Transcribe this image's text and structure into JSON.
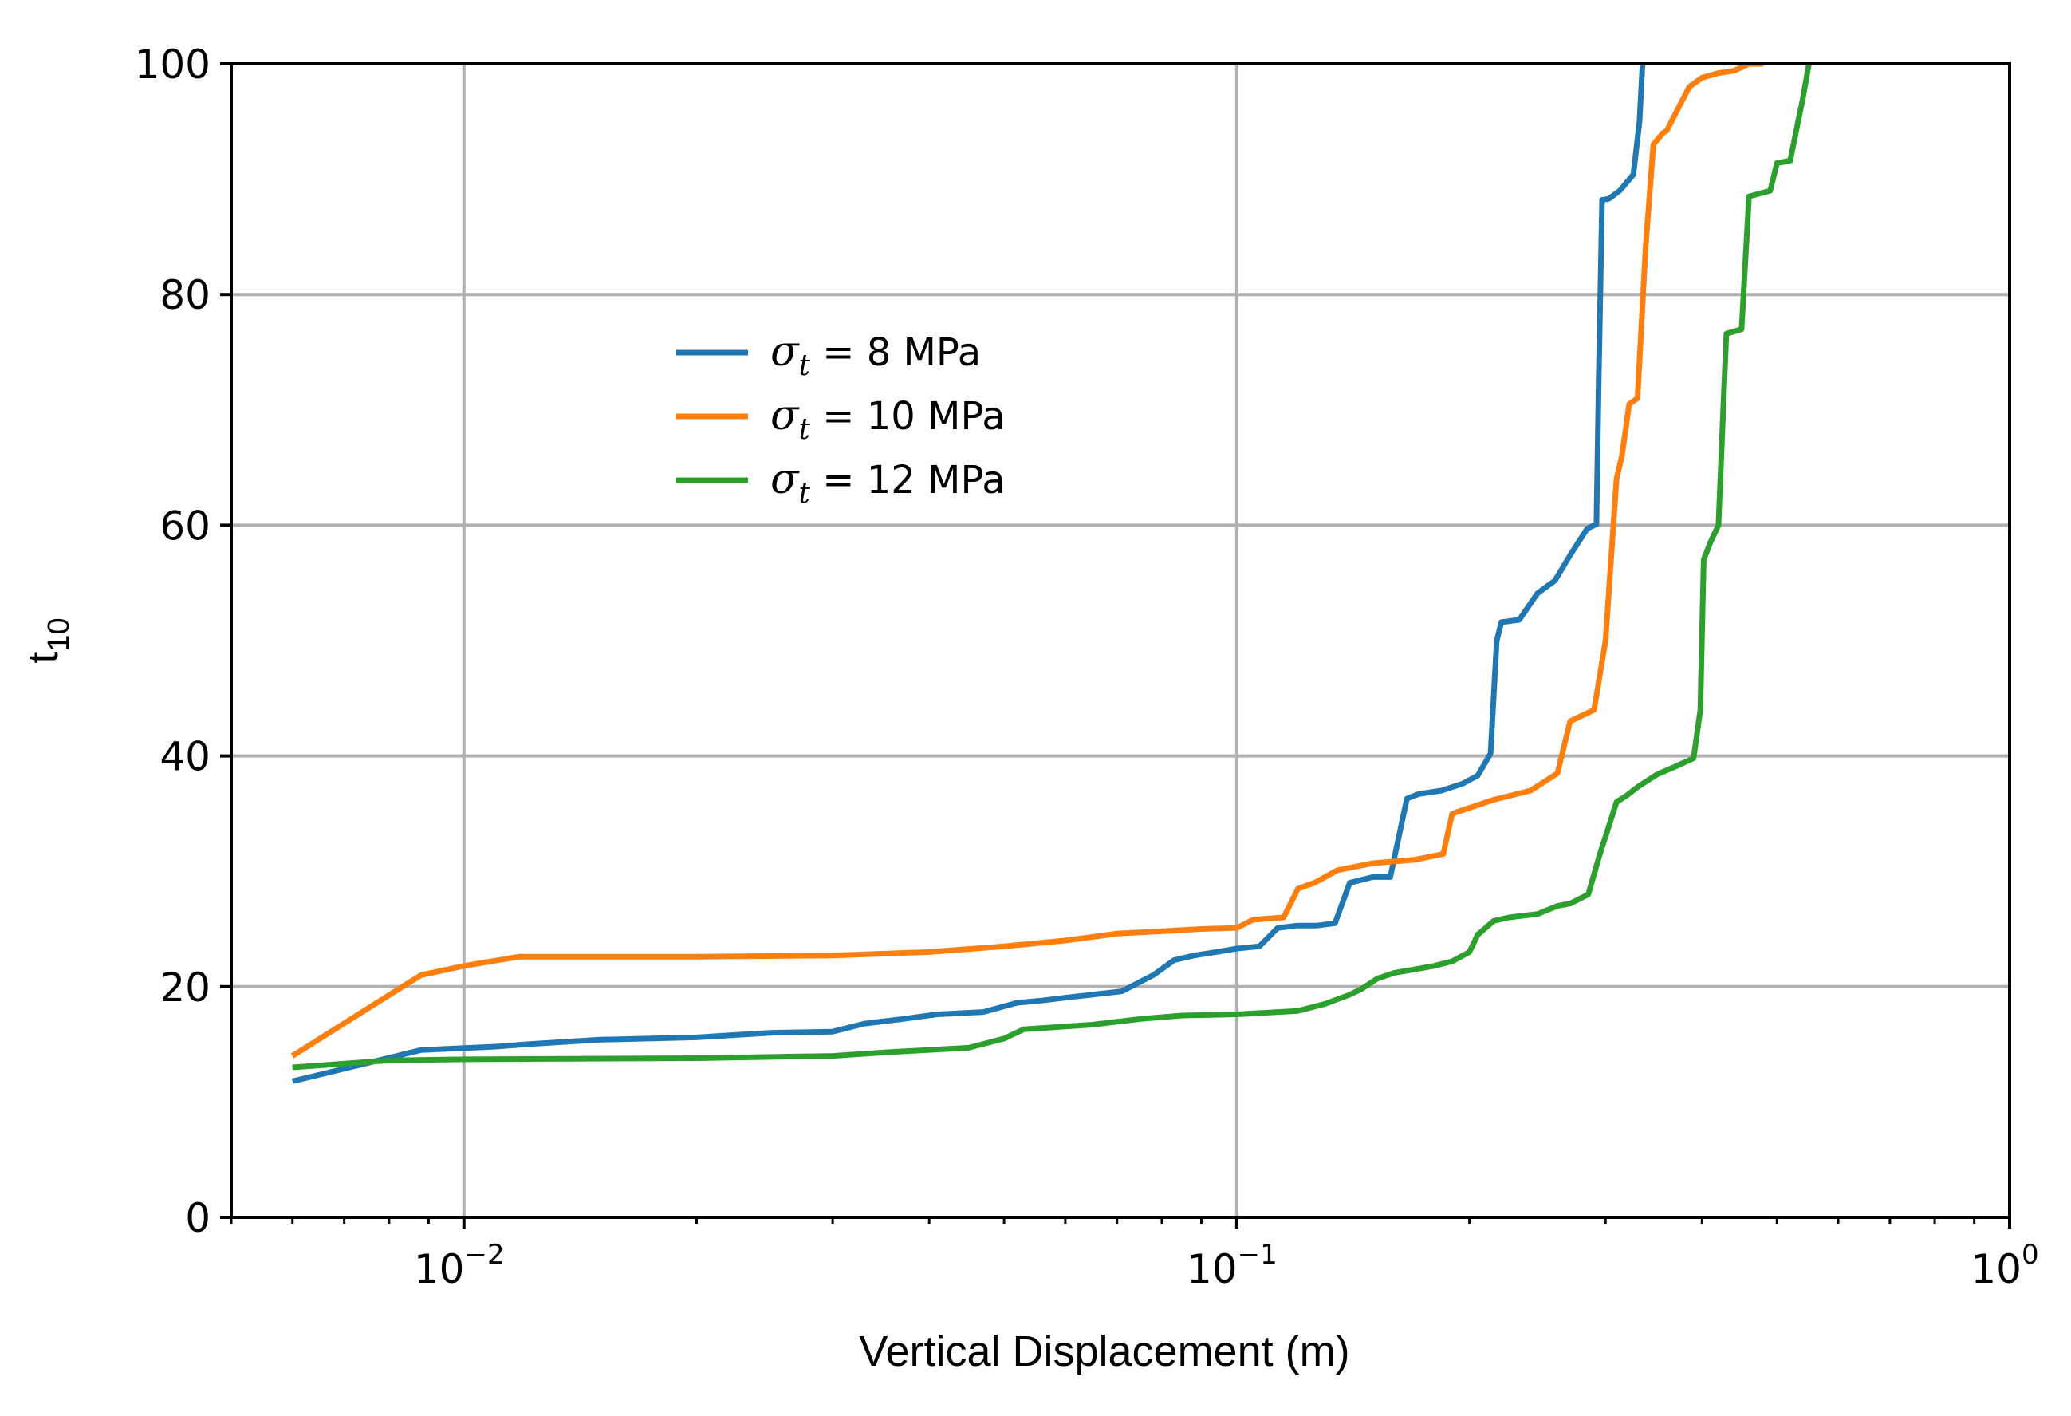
{
  "chart_data": {
    "type": "line",
    "title": "",
    "xlabel": "Vertical Displacement (m)",
    "ylabel": "t",
    "ylabel_subscript": "10",
    "xscale": "log",
    "xlim": [
      0.005,
      1.0
    ],
    "ylim": [
      0,
      100
    ],
    "grid": true,
    "legend_position": "upper-left-center",
    "x_ticks": [
      {
        "value": 0.01,
        "base": "10",
        "exp": "−2"
      },
      {
        "value": 0.1,
        "base": "10",
        "exp": "−1"
      },
      {
        "value": 1.0,
        "base": "10",
        "exp": "0"
      }
    ],
    "y_ticks": [
      {
        "value": 0,
        "label": "0"
      },
      {
        "value": 20,
        "label": "20"
      },
      {
        "value": 40,
        "label": "40"
      },
      {
        "value": 60,
        "label": "60"
      },
      {
        "value": 80,
        "label": "80"
      },
      {
        "value": 100,
        "label": "100"
      }
    ],
    "series": [
      {
        "name": "σt = 8 MPa",
        "symbol": "σ",
        "subscript": "t",
        "label_rest": " = 8 MPa",
        "color": "#1f77b4",
        "x": [
          0.006,
          0.0088,
          0.011,
          0.012,
          0.015,
          0.02,
          0.025,
          0.03,
          0.033,
          0.037,
          0.041,
          0.047,
          0.052,
          0.056,
          0.061,
          0.065,
          0.071,
          0.078,
          0.083,
          0.088,
          0.094,
          0.1,
          0.107,
          0.113,
          0.12,
          0.127,
          0.134,
          0.14,
          0.15,
          0.158,
          0.166,
          0.172,
          0.184,
          0.196,
          0.205,
          0.213,
          0.217,
          0.22,
          0.232,
          0.245,
          0.258,
          0.27,
          0.284,
          0.292,
          0.294,
          0.297,
          0.303,
          0.313,
          0.326,
          0.332,
          0.335
        ],
        "y": [
          11.8,
          14.5,
          14.8,
          15.0,
          15.4,
          15.6,
          16.0,
          16.1,
          16.8,
          17.2,
          17.6,
          17.8,
          18.6,
          18.8,
          19.1,
          19.3,
          19.6,
          21.0,
          22.3,
          22.7,
          23.0,
          23.3,
          23.5,
          25.1,
          25.3,
          25.3,
          25.5,
          29.0,
          29.5,
          29.5,
          36.3,
          36.7,
          37.0,
          37.6,
          38.3,
          40.2,
          50.0,
          51.6,
          51.8,
          54.1,
          55.2,
          57.4,
          59.7,
          60.1,
          72.8,
          88.2,
          88.3,
          89.0,
          90.4,
          95.0,
          100.0
        ]
      },
      {
        "name": "σt = 10 MPa",
        "symbol": "σ",
        "subscript": "t",
        "label_rest": " = 10 MPa",
        "color": "#ff7f0e",
        "x": [
          0.006,
          0.0088,
          0.01,
          0.0118,
          0.02,
          0.03,
          0.04,
          0.05,
          0.06,
          0.07,
          0.08,
          0.09,
          0.1,
          0.105,
          0.115,
          0.12,
          0.126,
          0.135,
          0.15,
          0.17,
          0.185,
          0.19,
          0.2,
          0.215,
          0.24,
          0.26,
          0.27,
          0.29,
          0.3,
          0.31,
          0.315,
          0.322,
          0.33,
          0.338,
          0.346,
          0.352,
          0.356,
          0.36,
          0.385,
          0.4,
          0.42,
          0.44,
          0.46,
          0.48
        ],
        "y": [
          14.0,
          21.0,
          21.8,
          22.6,
          22.6,
          22.7,
          23.0,
          23.5,
          24.0,
          24.6,
          24.8,
          25.0,
          25.1,
          25.8,
          26.0,
          28.5,
          29.0,
          30.1,
          30.7,
          31.0,
          31.5,
          35.0,
          35.5,
          36.2,
          37.0,
          38.5,
          43.0,
          44.0,
          50.0,
          64.0,
          66.0,
          70.5,
          71.0,
          84.0,
          93.0,
          93.6,
          94.0,
          94.2,
          98.0,
          98.8,
          99.2,
          99.4,
          100.0,
          100.0
        ]
      },
      {
        "name": "σt = 12 MPa",
        "symbol": "σ",
        "subscript": "t",
        "label_rest": " = 12 MPa",
        "color": "#2ca02c",
        "x": [
          0.006,
          0.008,
          0.01,
          0.02,
          0.03,
          0.035,
          0.045,
          0.05,
          0.053,
          0.065,
          0.075,
          0.085,
          0.1,
          0.12,
          0.13,
          0.14,
          0.145,
          0.152,
          0.16,
          0.17,
          0.18,
          0.19,
          0.2,
          0.205,
          0.215,
          0.225,
          0.245,
          0.26,
          0.27,
          0.285,
          0.295,
          0.3,
          0.31,
          0.32,
          0.33,
          0.35,
          0.37,
          0.39,
          0.398,
          0.402,
          0.41,
          0.42,
          0.43,
          0.45,
          0.46,
          0.49,
          0.5,
          0.52,
          0.54,
          0.55
        ],
        "y": [
          13.0,
          13.6,
          13.7,
          13.8,
          14.0,
          14.3,
          14.7,
          15.5,
          16.3,
          16.7,
          17.2,
          17.5,
          17.6,
          17.9,
          18.5,
          19.3,
          19.8,
          20.7,
          21.2,
          21.5,
          21.8,
          22.2,
          23.0,
          24.5,
          25.7,
          26.0,
          26.3,
          27.0,
          27.2,
          28.0,
          31.5,
          33.0,
          36.0,
          36.6,
          37.3,
          38.4,
          39.1,
          39.8,
          44.0,
          57.0,
          58.5,
          60.0,
          76.6,
          77.0,
          88.5,
          89.0,
          91.4,
          91.6,
          97.0,
          100.0
        ]
      }
    ]
  }
}
